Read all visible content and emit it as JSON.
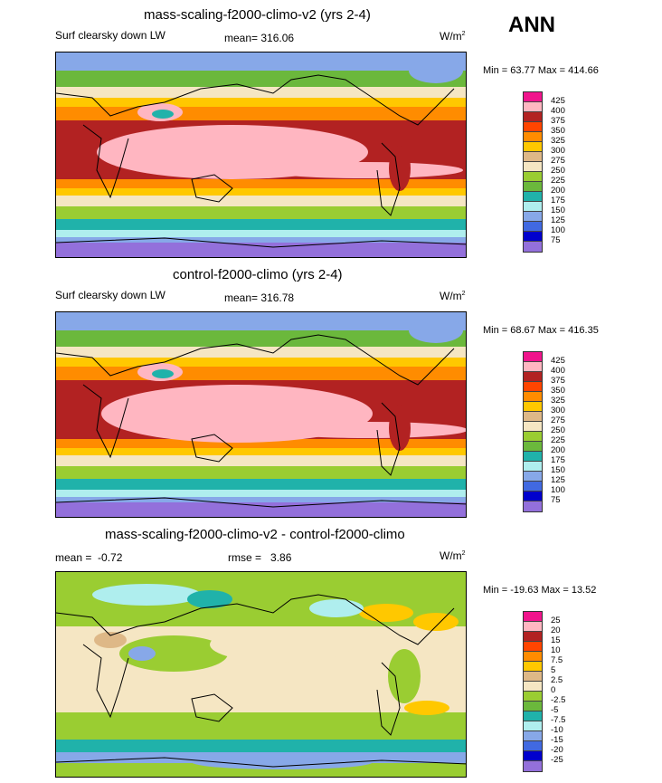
{
  "season": "ANN",
  "units_base": "W/m",
  "units_exp": "2",
  "panels": [
    {
      "title": "mass-scaling-f2000-climo-v2 (yrs 2-4)",
      "variable": "Surf clearsky down LW",
      "mean_label": "mean=",
      "mean_value": "316.06",
      "minmax": "Min =  63.77 Max = 414.66"
    },
    {
      "title": "control-f2000-climo (yrs 2-4)",
      "variable": "Surf clearsky down LW",
      "mean_label": "mean=",
      "mean_value": "316.78",
      "minmax": "Min =  68.67 Max = 416.35"
    },
    {
      "title": "mass-scaling-f2000-climo-v2 - control-f2000-climo",
      "mean_label": "mean =",
      "mean_value": "-0.72",
      "rmse_label": "rmse =",
      "rmse_value": "3.86",
      "minmax": "Min = -19.63 Max =  13.52"
    }
  ],
  "colorbar_abs": {
    "labels": [
      "425",
      "400",
      "375",
      "350",
      "325",
      "300",
      "275",
      "250",
      "225",
      "200",
      "175",
      "150",
      "125",
      "100",
      "75"
    ],
    "colors": [
      "#f0148c",
      "#ffb6c1",
      "#b22222",
      "#ff4500",
      "#ff8c00",
      "#ffc800",
      "#deb887",
      "#f5e6c3",
      "#9acd32",
      "#6bb83c",
      "#20b2aa",
      "#afeeee",
      "#87a8e8",
      "#4169e1",
      "#0000cd",
      "#9370db"
    ]
  },
  "colorbar_diff": {
    "labels": [
      "25",
      "20",
      "15",
      "10",
      "7.5",
      "5",
      "2.5",
      "0",
      "-2.5",
      "-5",
      "-7.5",
      "-10",
      "-15",
      "-20",
      "-25"
    ],
    "colors": [
      "#f0148c",
      "#ffb6c1",
      "#b22222",
      "#ff4500",
      "#ff8c00",
      "#ffc800",
      "#deb887",
      "#f5e6c3",
      "#9acd32",
      "#6bb83c",
      "#20b2aa",
      "#afeeee",
      "#87a8e8",
      "#4169e1",
      "#0000cd",
      "#9370db"
    ]
  }
}
